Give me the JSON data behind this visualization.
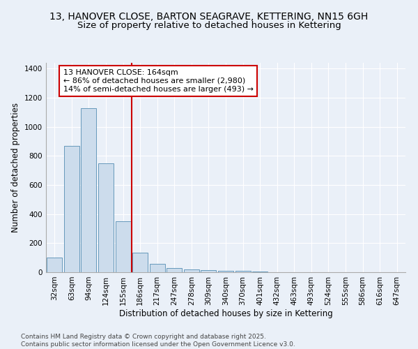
{
  "title": "13, HANOVER CLOSE, BARTON SEAGRAVE, KETTERING, NN15 6GH",
  "subtitle": "Size of property relative to detached houses in Kettering",
  "xlabel": "Distribution of detached houses by size in Kettering",
  "ylabel": "Number of detached properties",
  "bar_color": "#ccdcec",
  "bar_edge_color": "#6699bb",
  "background_color": "#eaf0f8",
  "grid_color": "#ffffff",
  "categories": [
    "32sqm",
    "63sqm",
    "94sqm",
    "124sqm",
    "155sqm",
    "186sqm",
    "217sqm",
    "247sqm",
    "278sqm",
    "309sqm",
    "340sqm",
    "370sqm",
    "401sqm",
    "432sqm",
    "463sqm",
    "493sqm",
    "524sqm",
    "555sqm",
    "586sqm",
    "616sqm",
    "647sqm"
  ],
  "values": [
    100,
    870,
    1130,
    750,
    350,
    135,
    58,
    28,
    20,
    15,
    10,
    8,
    6,
    0,
    0,
    0,
    0,
    0,
    0,
    0,
    0
  ],
  "vline_x": 4.5,
  "vline_color": "#cc0000",
  "annotation_text": "13 HANOVER CLOSE: 164sqm\n← 86% of detached houses are smaller (2,980)\n14% of semi-detached houses are larger (493) →",
  "annotation_box_color": "#ffffff",
  "annotation_box_edge": "#cc0000",
  "ylim": [
    0,
    1440
  ],
  "yticks": [
    0,
    200,
    400,
    600,
    800,
    1000,
    1200,
    1400
  ],
  "footer_text": "Contains HM Land Registry data © Crown copyright and database right 2025.\nContains public sector information licensed under the Open Government Licence v3.0.",
  "title_fontsize": 10,
  "subtitle_fontsize": 9.5,
  "axis_label_fontsize": 8.5,
  "tick_fontsize": 7.5,
  "annotation_fontsize": 8,
  "footer_fontsize": 6.5
}
